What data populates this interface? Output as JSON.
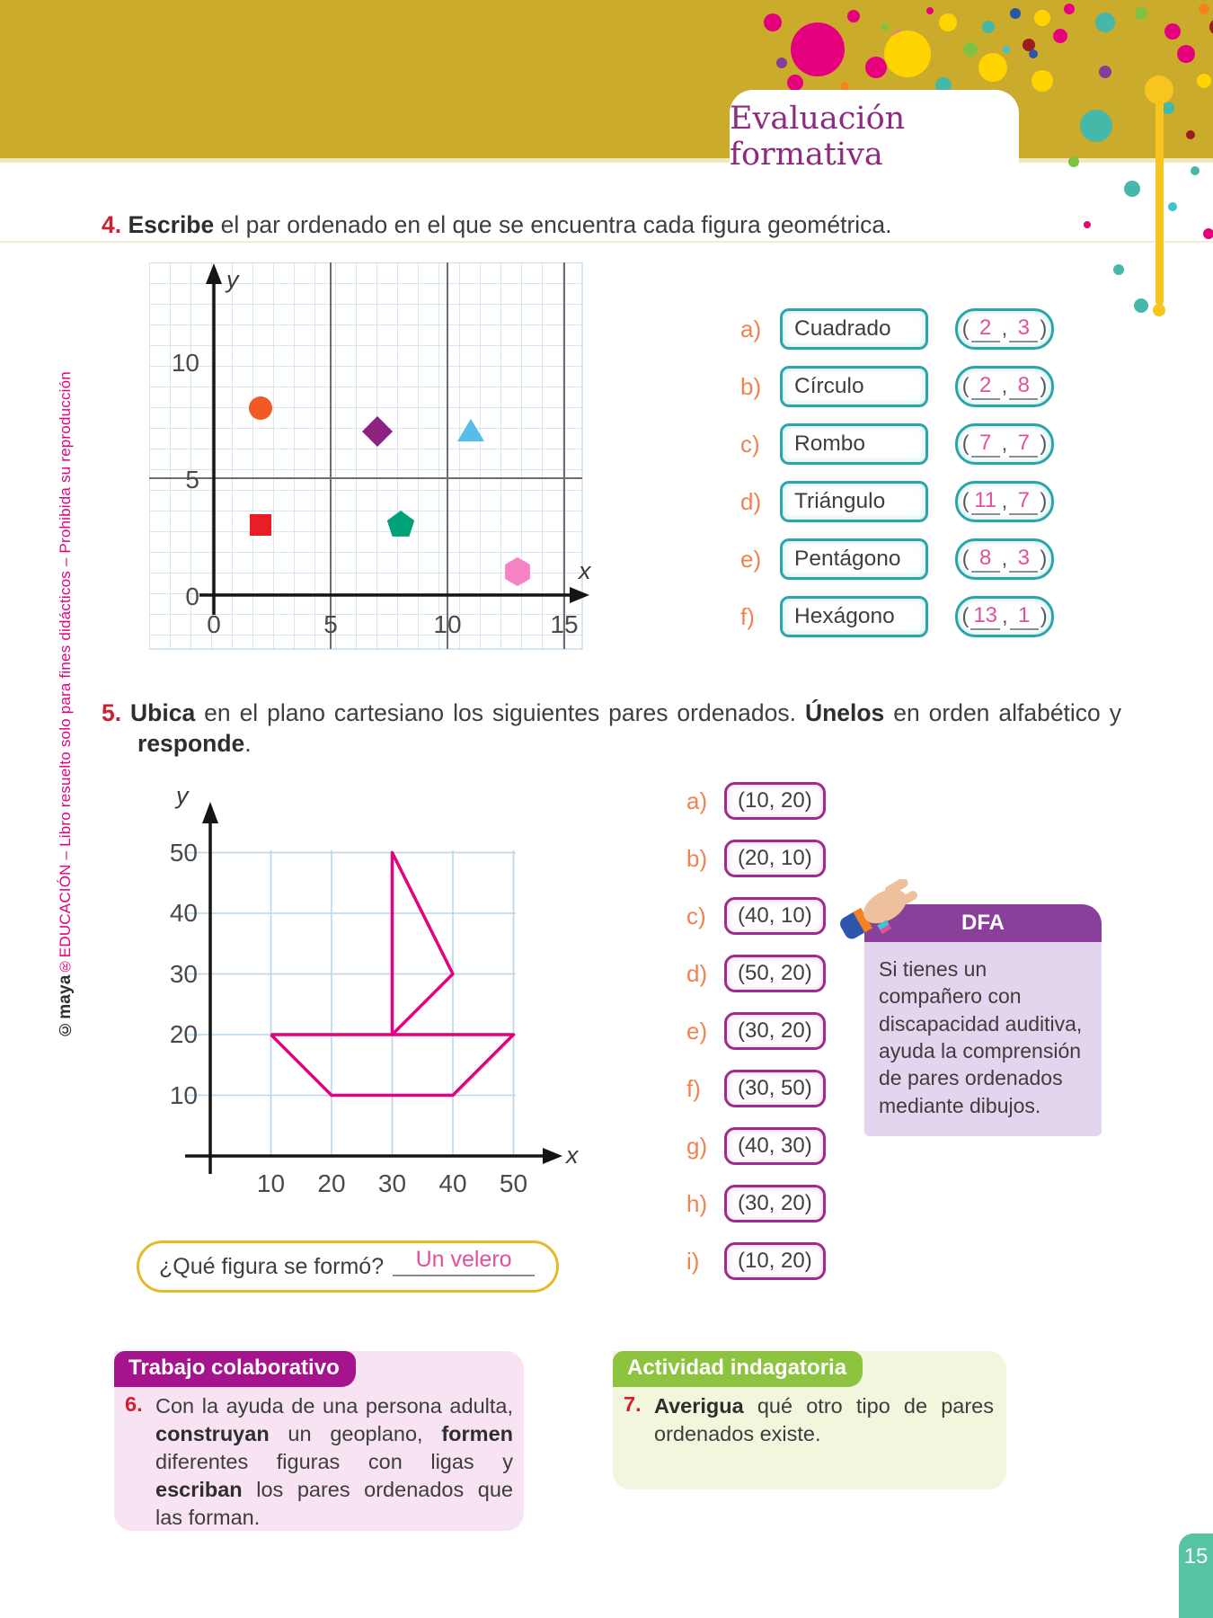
{
  "header": {
    "title": "Evaluación formativa"
  },
  "sidebar_note": {
    "brand": "©maya",
    "rest": "®EDUCACIÓN – Libro resuelto solo para fines didácticos – Prohibida su reproducción"
  },
  "exercise4": {
    "number": "4.",
    "bold": "Escribe",
    "text": " el par ordenado en el que se encuentra cada figura geométrica.",
    "answers": [
      {
        "letter": "a)",
        "name": "Cuadrado",
        "x": "2",
        "y": "3"
      },
      {
        "letter": "b)",
        "name": "Círculo",
        "x": "2",
        "y": "8"
      },
      {
        "letter": "c)",
        "name": "Rombo",
        "x": "7",
        "y": "7"
      },
      {
        "letter": "d)",
        "name": "Triángulo",
        "x": "11",
        "y": "7"
      },
      {
        "letter": "e)",
        "name": "Pentágono",
        "x": "8",
        "y": "3"
      },
      {
        "letter": "f)",
        "name": "Hexágono",
        "x": "13",
        "y": "1"
      }
    ]
  },
  "exercise5": {
    "number": "5.",
    "bold1": "Ubica",
    "text1": " en el plano cartesiano los siguientes pares ordenados. ",
    "bold2": "Únelos",
    "text2": " en orden alfabético y ",
    "bold3": "responde",
    "text3": ".",
    "pairs": [
      {
        "letter": "a)",
        "value": "(10, 20)"
      },
      {
        "letter": "b)",
        "value": "(20, 10)"
      },
      {
        "letter": "c)",
        "value": "(40, 10)"
      },
      {
        "letter": "d)",
        "value": "(50, 20)"
      },
      {
        "letter": "e)",
        "value": "(30, 20)"
      },
      {
        "letter": "f)",
        "value": "(30, 50)"
      },
      {
        "letter": "g)",
        "value": "(40, 30)"
      },
      {
        "letter": "h)",
        "value": "(30, 20)"
      },
      {
        "letter": "i)",
        "value": "(10, 20)"
      }
    ],
    "question_label": "¿Qué figura se formó?",
    "question_answer": "Un velero"
  },
  "dfa": {
    "title": "DFA",
    "text": "Si tienes un compañero con discapacidad auditiva, ayuda la comprensión de pares ordenados mediante dibujos."
  },
  "collaborative": {
    "header": "Trabajo colaborativo",
    "number": "6.",
    "text1": "Con la ayuda de una persona adulta, ",
    "bold1": "construyan",
    "text2": " un geoplano, ",
    "bold2": "formen",
    "text3": " diferentes figuras con ligas y ",
    "bold3": "escriban",
    "text4": " los pares ordenados que las forman."
  },
  "inquiry": {
    "header": "Actividad indagatoria",
    "number": "7.",
    "bold": "Averigua",
    "text": " qué otro tipo de pares ordenados existe."
  },
  "page": {
    "number": "15"
  },
  "chart_data": [
    {
      "type": "scatter",
      "title": "Figuras geométricas en el plano cartesiano",
      "xlabel": "x",
      "ylabel": "y",
      "x_ticks": [
        "0",
        "5",
        "10",
        "15"
      ],
      "y_ticks": [
        "10",
        "5",
        "0"
      ],
      "xlim": [
        0,
        16
      ],
      "ylim": [
        0,
        11
      ],
      "grid": "graph-paper",
      "points": [
        {
          "shape": "circle",
          "name": "Círculo",
          "x": 2,
          "y": 8,
          "color": "#f15a24"
        },
        {
          "shape": "diamond",
          "name": "Rombo",
          "x": 7,
          "y": 7,
          "color": "#8e2283"
        },
        {
          "shape": "triangle",
          "name": "Triángulo",
          "x": 11,
          "y": 7,
          "color": "#54bdea"
        },
        {
          "shape": "square",
          "name": "Cuadrado",
          "x": 2,
          "y": 3,
          "color": "#e91d25"
        },
        {
          "shape": "pentagon",
          "name": "Pentágono",
          "x": 8,
          "y": 3,
          "color": "#00a278"
        },
        {
          "shape": "hexagon",
          "name": "Hexágono",
          "x": 13,
          "y": 1,
          "color": "#f583c6"
        }
      ]
    },
    {
      "type": "line",
      "title": "Velero formado al unir los pares ordenados",
      "xlabel": "x",
      "ylabel": "y",
      "x_ticks": [
        "10",
        "20",
        "30",
        "40",
        "50"
      ],
      "y_ticks": [
        "50",
        "40",
        "30",
        "20",
        "10"
      ],
      "xlim": [
        0,
        55
      ],
      "ylim": [
        0,
        55
      ],
      "line_color": "#e5007d",
      "path": [
        {
          "x": 10,
          "y": 20
        },
        {
          "x": 20,
          "y": 10
        },
        {
          "x": 40,
          "y": 10
        },
        {
          "x": 50,
          "y": 20
        },
        {
          "x": 30,
          "y": 20
        },
        {
          "x": 30,
          "y": 50
        },
        {
          "x": 40,
          "y": 30
        },
        {
          "x": 30,
          "y": 20
        },
        {
          "x": 10,
          "y": 20
        }
      ],
      "figure": "Un velero"
    }
  ]
}
